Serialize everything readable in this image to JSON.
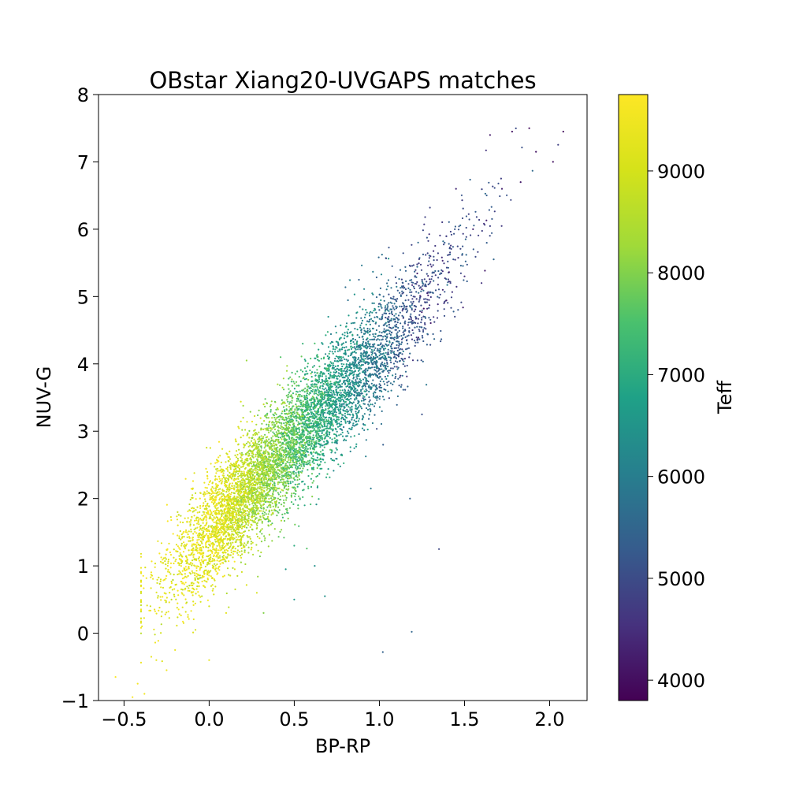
{
  "chart_data": {
    "type": "scatter",
    "title": "OBstar Xiang20-UVGAPS matches",
    "xlabel": "BP-RP",
    "ylabel": "NUV-G",
    "xlim": [
      -0.65,
      2.22
    ],
    "ylim": [
      -1,
      8
    ],
    "xticks": [
      -0.5,
      0.0,
      0.5,
      1.0,
      1.5,
      2.0
    ],
    "xtick_labels": [
      "−0.5",
      "0.0",
      "0.5",
      "1.0",
      "1.5",
      "2.0"
    ],
    "yticks": [
      -1,
      0,
      1,
      2,
      3,
      4,
      5,
      6,
      7,
      8
    ],
    "ytick_labels": [
      "−1",
      "0",
      "1",
      "2",
      "3",
      "4",
      "5",
      "6",
      "7",
      "8"
    ],
    "grid": false,
    "colormap": "viridis",
    "colorbar": {
      "label": "Teff",
      "range": [
        3800,
        9750
      ],
      "ticks": [
        4000,
        5000,
        6000,
        7000,
        8000,
        9000
      ],
      "tick_labels": [
        "4000",
        "5000",
        "6000",
        "7000",
        "8000",
        "9000"
      ]
    },
    "series": [
      {
        "marker_color": "mapped by Teff",
        "points": [
          [
            -0.55,
            -0.65,
            9700
          ],
          [
            -0.45,
            -0.95,
            9650
          ],
          [
            -0.42,
            -0.75,
            9600
          ],
          [
            -0.38,
            -0.9,
            9500
          ],
          [
            -0.34,
            -0.35,
            9400
          ],
          [
            -0.31,
            -0.4,
            9300
          ],
          [
            -0.28,
            0.25,
            9200
          ],
          [
            -0.26,
            1.07,
            9000
          ],
          [
            -0.25,
            -0.55,
            9500
          ],
          [
            -0.2,
            -0.25,
            9400
          ],
          [
            -0.15,
            0.15,
            9300
          ],
          [
            -0.1,
            0.75,
            9100
          ],
          [
            -0.08,
            0.05,
            9000
          ],
          [
            -0.05,
            1.55,
            8500
          ],
          [
            -0.03,
            0.9,
            9200
          ],
          [
            0.0,
            0.4,
            9000
          ],
          [
            0.0,
            -0.4,
            9300
          ],
          [
            0.02,
            1.75,
            8700
          ],
          [
            0.05,
            2.2,
            9300
          ],
          [
            0.08,
            1.3,
            9100
          ],
          [
            0.1,
            0.3,
            9300
          ],
          [
            0.12,
            2.7,
            9400
          ],
          [
            0.15,
            1.9,
            9500
          ],
          [
            0.18,
            2.4,
            9200
          ],
          [
            0.2,
            3.2,
            8700
          ],
          [
            0.22,
            4.05,
            8200
          ],
          [
            0.25,
            2.9,
            8500
          ],
          [
            0.28,
            0.6,
            9000
          ],
          [
            0.3,
            2.5,
            8600
          ],
          [
            0.32,
            0.3,
            8000
          ],
          [
            0.35,
            3.1,
            8300
          ],
          [
            0.38,
            2.6,
            8200
          ],
          [
            0.42,
            4.1,
            7600
          ],
          [
            0.45,
            0.95,
            6600
          ],
          [
            0.47,
            3.3,
            7500
          ],
          [
            0.5,
            0.5,
            6600
          ],
          [
            0.5,
            1.3,
            7000
          ],
          [
            0.53,
            2.9,
            7300
          ],
          [
            0.55,
            4.3,
            7200
          ],
          [
            0.6,
            3.6,
            6900
          ],
          [
            0.62,
            1.0,
            6400
          ],
          [
            0.65,
            2.8,
            6700
          ],
          [
            0.68,
            0.55,
            6400
          ],
          [
            0.7,
            4.7,
            6500
          ],
          [
            0.73,
            3.6,
            6400
          ],
          [
            0.78,
            3.4,
            6200
          ],
          [
            0.8,
            4.2,
            6000
          ],
          [
            0.83,
            2.7,
            6100
          ],
          [
            0.85,
            3.8,
            5800
          ],
          [
            0.88,
            5.25,
            5400
          ],
          [
            0.9,
            4.4,
            5500
          ],
          [
            0.93,
            3.9,
            5600
          ],
          [
            0.95,
            2.15,
            5900
          ],
          [
            1.0,
            4.8,
            5200
          ],
          [
            1.02,
            -0.28,
            5400
          ],
          [
            1.05,
            4.5,
            5100
          ],
          [
            1.1,
            5.2,
            4900
          ],
          [
            1.12,
            3.8,
            5000
          ],
          [
            1.15,
            4.6,
            5000
          ],
          [
            1.18,
            2.0,
            5400
          ],
          [
            1.19,
            0.02,
            5500
          ],
          [
            1.2,
            5.0,
            4800
          ],
          [
            1.25,
            3.25,
            5100
          ],
          [
            1.3,
            5.6,
            4600
          ],
          [
            1.35,
            1.25,
            4900
          ],
          [
            1.38,
            4.9,
            4700
          ],
          [
            1.45,
            6.6,
            4400
          ],
          [
            1.5,
            5.3,
            4500
          ],
          [
            1.55,
            6.0,
            4300
          ],
          [
            1.6,
            5.2,
            4600
          ],
          [
            1.65,
            7.4,
            4200
          ],
          [
            1.72,
            6.6,
            4300
          ],
          [
            1.78,
            7.45,
            4100
          ],
          [
            1.83,
            6.7,
            4200
          ],
          [
            1.88,
            7.5,
            4000
          ],
          [
            1.92,
            7.15,
            4100
          ],
          [
            2.02,
            7.0,
            4100
          ],
          [
            2.08,
            7.45,
            4000
          ]
        ]
      }
    ]
  }
}
